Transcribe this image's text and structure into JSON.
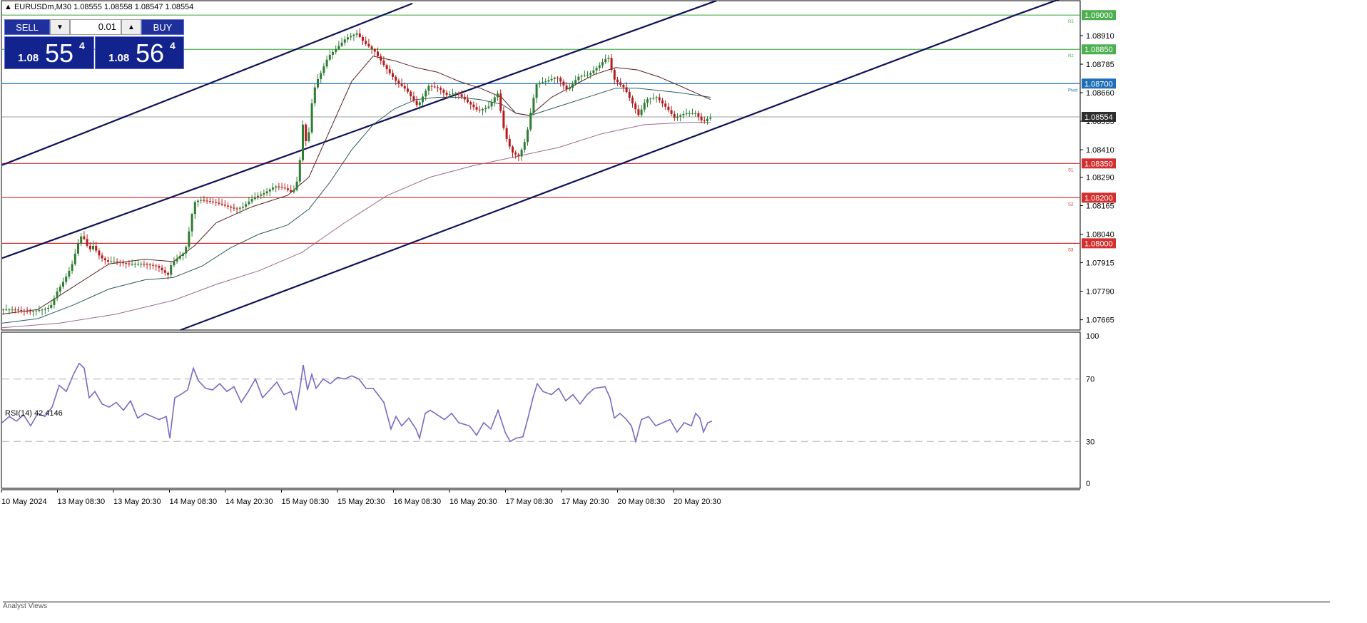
{
  "header": {
    "symbol_line": "EURUSDm,M30  1.08555 1.08558 1.08547 1.08554"
  },
  "trade_panel": {
    "sell_label": "SELL",
    "buy_label": "BUY",
    "lot": "0.01",
    "sell_price_small": "1.08",
    "sell_price_big": "55",
    "sell_price_sup": "4",
    "buy_price_small": "1.08",
    "buy_price_big": "56",
    "buy_price_sup": "4"
  },
  "indicator_label": "RSI(14) 42.4146",
  "bottom_tab": "Analyst Views",
  "chart_data": [
    {
      "type": "candlestick",
      "symbol": "EURUSDm",
      "timeframe": "M30",
      "ylim": [
        1.0762,
        1.0906
      ],
      "y_ticks": [
        "1.08910",
        "1.08785",
        "1.08660",
        "1.08535",
        "1.08410",
        "1.08290",
        "1.08165",
        "1.08040",
        "1.07915",
        "1.07790",
        "1.07665"
      ],
      "x_ticks": [
        "10 May 2024",
        "13 May 08:30",
        "13 May 20:30",
        "14 May 08:30",
        "14 May 20:30",
        "15 May 08:30",
        "15 May 20:30",
        "16 May 08:30",
        "16 May 20:30",
        "17 May 08:30",
        "17 May 20:30",
        "20 May 08:30",
        "20 May 20:30"
      ],
      "current_price": "1.08554",
      "levels": [
        {
          "price": 1.09,
          "label": "1.09000",
          "tag": "R3",
          "color": "#4caf50"
        },
        {
          "price": 1.0885,
          "label": "1.08850",
          "tag": "R2",
          "color": "#4caf50"
        },
        {
          "price": 1.087,
          "label": "1.08700",
          "tag": "Pivot",
          "color": "#1e6fb8"
        },
        {
          "price": 1.0835,
          "label": "1.08350",
          "tag": "S1",
          "color": "#d32f2f"
        },
        {
          "price": 1.082,
          "label": "1.08200",
          "tag": "S2",
          "color": "#d32f2f"
        },
        {
          "price": 1.08,
          "label": "1.08000",
          "tag": "S3",
          "color": "#d32f2f"
        }
      ],
      "close_path": [
        [
          0,
          1.0771
        ],
        [
          20,
          1.0771
        ],
        [
          40,
          1.077
        ],
        [
          60,
          1.0771
        ],
        [
          70,
          1.0772
        ],
        [
          80,
          1.0779
        ],
        [
          90,
          1.0784
        ],
        [
          100,
          1.079
        ],
        [
          110,
          1.0801
        ],
        [
          115,
          1.0804
        ],
        [
          120,
          1.08
        ],
        [
          125,
          1.0797
        ],
        [
          130,
          1.0799
        ],
        [
          140,
          1.0794
        ],
        [
          150,
          1.0792
        ],
        [
          160,
          1.0792
        ],
        [
          180,
          1.0791
        ],
        [
          200,
          1.0791
        ],
        [
          220,
          1.079
        ],
        [
          235,
          1.0786
        ],
        [
          240,
          1.0791
        ],
        [
          250,
          1.0794
        ],
        [
          258,
          1.0796
        ],
        [
          262,
          1.08
        ],
        [
          267,
          1.081
        ],
        [
          272,
          1.0818
        ],
        [
          280,
          1.0819
        ],
        [
          300,
          1.0818
        ],
        [
          320,
          1.0816
        ],
        [
          330,
          1.0815
        ],
        [
          340,
          1.0816
        ],
        [
          355,
          1.082
        ],
        [
          370,
          1.0822
        ],
        [
          385,
          1.0825
        ],
        [
          400,
          1.0824
        ],
        [
          410,
          1.0822
        ],
        [
          418,
          1.0829
        ],
        [
          425,
          1.0855
        ],
        [
          430,
          1.084
        ],
        [
          436,
          1.086
        ],
        [
          442,
          1.087
        ],
        [
          450,
          1.0875
        ],
        [
          460,
          1.0882
        ],
        [
          470,
          1.0885
        ],
        [
          485,
          1.089
        ],
        [
          500,
          1.0892
        ],
        [
          510,
          1.0888
        ],
        [
          525,
          1.0884
        ],
        [
          540,
          1.0877
        ],
        [
          555,
          1.0871
        ],
        [
          570,
          1.0867
        ],
        [
          585,
          1.086
        ],
        [
          600,
          1.0869
        ],
        [
          615,
          1.0868
        ],
        [
          625,
          1.0865
        ],
        [
          640,
          1.0866
        ],
        [
          655,
          1.0862
        ],
        [
          670,
          1.0858
        ],
        [
          685,
          1.086
        ],
        [
          697,
          1.0866
        ],
        [
          707,
          1.0848
        ],
        [
          717,
          1.084
        ],
        [
          727,
          1.0838
        ],
        [
          737,
          1.0846
        ],
        [
          745,
          1.086
        ],
        [
          752,
          1.087
        ],
        [
          765,
          1.0871
        ],
        [
          780,
          1.0873
        ],
        [
          795,
          1.0867
        ],
        [
          810,
          1.0873
        ],
        [
          825,
          1.0874
        ],
        [
          840,
          1.0878
        ],
        [
          852,
          1.0882
        ],
        [
          860,
          1.0872
        ],
        [
          875,
          1.0868
        ],
        [
          885,
          1.0862
        ],
        [
          895,
          1.0856
        ],
        [
          905,
          1.0863
        ],
        [
          920,
          1.0864
        ],
        [
          935,
          1.0859
        ],
        [
          945,
          1.0855
        ],
        [
          960,
          1.0857
        ],
        [
          975,
          1.0857
        ],
        [
          985,
          1.0853
        ],
        [
          993,
          1.0855
        ]
      ],
      "ma_fast": [
        [
          0,
          1.0769
        ],
        [
          50,
          1.0771
        ],
        [
          100,
          1.0781
        ],
        [
          150,
          1.0791
        ],
        [
          200,
          1.0793
        ],
        [
          240,
          1.0792
        ],
        [
          270,
          1.0799
        ],
        [
          300,
          1.0809
        ],
        [
          350,
          1.0816
        ],
        [
          400,
          1.0821
        ],
        [
          430,
          1.0829
        ],
        [
          460,
          1.085
        ],
        [
          490,
          1.0871
        ],
        [
          520,
          1.0882
        ],
        [
          550,
          1.088
        ],
        [
          580,
          1.0877
        ],
        [
          610,
          1.0875
        ],
        [
          640,
          1.0871
        ],
        [
          670,
          1.0868
        ],
        [
          700,
          1.0864
        ],
        [
          720,
          1.0857
        ],
        [
          740,
          1.0856
        ],
        [
          770,
          1.0864
        ],
        [
          800,
          1.0869
        ],
        [
          830,
          1.0874
        ],
        [
          860,
          1.0877
        ],
        [
          890,
          1.0876
        ],
        [
          920,
          1.0873
        ],
        [
          950,
          1.0869
        ],
        [
          993,
          1.0863
        ]
      ],
      "ma_mid": [
        [
          0,
          1.0765
        ],
        [
          50,
          1.0767
        ],
        [
          100,
          1.0773
        ],
        [
          150,
          1.078
        ],
        [
          200,
          1.0784
        ],
        [
          240,
          1.0785
        ],
        [
          280,
          1.079
        ],
        [
          320,
          1.0798
        ],
        [
          360,
          1.0804
        ],
        [
          400,
          1.0808
        ],
        [
          430,
          1.0815
        ],
        [
          460,
          1.0827
        ],
        [
          490,
          1.0841
        ],
        [
          520,
          1.0852
        ],
        [
          550,
          1.0859
        ],
        [
          580,
          1.0863
        ],
        [
          610,
          1.0864
        ],
        [
          640,
          1.0864
        ],
        [
          670,
          1.0863
        ],
        [
          700,
          1.0861
        ],
        [
          720,
          1.0857
        ],
        [
          740,
          1.0856
        ],
        [
          770,
          1.0859
        ],
        [
          800,
          1.0862
        ],
        [
          830,
          1.0865
        ],
        [
          860,
          1.0868
        ],
        [
          890,
          1.0868
        ],
        [
          920,
          1.0867
        ],
        [
          950,
          1.0866
        ],
        [
          993,
          1.0864
        ]
      ],
      "ma_slow": [
        [
          0,
          1.0763
        ],
        [
          80,
          1.0765
        ],
        [
          160,
          1.0769
        ],
        [
          240,
          1.0775
        ],
        [
          300,
          1.0782
        ],
        [
          360,
          1.0788
        ],
        [
          420,
          1.0796
        ],
        [
          480,
          1.0809
        ],
        [
          540,
          1.0821
        ],
        [
          600,
          1.0829
        ],
        [
          660,
          1.0834
        ],
        [
          720,
          1.0838
        ],
        [
          780,
          1.0842
        ],
        [
          840,
          1.0848
        ],
        [
          900,
          1.0852
        ],
        [
          960,
          1.0853
        ],
        [
          993,
          1.0853
        ]
      ]
    },
    {
      "type": "line",
      "title": "RSI(14) 42.4146",
      "ylim": [
        0,
        100
      ],
      "y_ticks": [
        "100",
        "70",
        "30",
        "0"
      ],
      "levels": [
        70,
        30
      ],
      "x_ticks": [
        "10 May 2024",
        "13 May 08:30",
        "13 May 20:30",
        "14 May 08:30",
        "14 May 20:30",
        "15 May 08:30",
        "15 May 20:30",
        "16 May 08:30",
        "16 May 20:30",
        "17 May 08:30",
        "17 May 20:30",
        "20 May 08:30",
        "20 May 20:30"
      ],
      "series": [
        {
          "values": [
            [
              0,
              42
            ],
            [
              10,
              46
            ],
            [
              20,
              43
            ],
            [
              30,
              47
            ],
            [
              40,
              40
            ],
            [
              50,
              48
            ],
            [
              60,
              46
            ],
            [
              70,
              52
            ],
            [
              80,
              66
            ],
            [
              90,
              62
            ],
            [
              100,
              73
            ],
            [
              108,
              80
            ],
            [
              115,
              77
            ],
            [
              122,
              58
            ],
            [
              130,
              62
            ],
            [
              140,
              54
            ],
            [
              150,
              52
            ],
            [
              160,
              55
            ],
            [
              170,
              50
            ],
            [
              180,
              56
            ],
            [
              190,
              45
            ],
            [
              200,
              48
            ],
            [
              210,
              46
            ],
            [
              220,
              44
            ],
            [
              230,
              46
            ],
            [
              235,
              32
            ],
            [
              242,
              58
            ],
            [
              250,
              60
            ],
            [
              260,
              63
            ],
            [
              268,
              77
            ],
            [
              275,
              69
            ],
            [
              285,
              64
            ],
            [
              295,
              63
            ],
            [
              305,
              67
            ],
            [
              315,
              62
            ],
            [
              325,
              65
            ],
            [
              335,
              55
            ],
            [
              345,
              62
            ],
            [
              355,
              70
            ],
            [
              365,
              58
            ],
            [
              375,
              63
            ],
            [
              385,
              68
            ],
            [
              395,
              60
            ],
            [
              405,
              62
            ],
            [
              412,
              50
            ],
            [
              418,
              66
            ],
            [
              422,
              79
            ],
            [
              428,
              63
            ],
            [
              434,
              73
            ],
            [
              440,
              64
            ],
            [
              450,
              70
            ],
            [
              460,
              67
            ],
            [
              470,
              71
            ],
            [
              480,
              70
            ],
            [
              490,
              72
            ],
            [
              500,
              70
            ],
            [
              510,
              64
            ],
            [
              520,
              64
            ],
            [
              535,
              55
            ],
            [
              545,
              38
            ],
            [
              552,
              46
            ],
            [
              560,
              40
            ],
            [
              570,
              45
            ],
            [
              580,
              38
            ],
            [
              585,
              32
            ],
            [
              593,
              48
            ],
            [
              600,
              50
            ],
            [
              610,
              47
            ],
            [
              620,
              44
            ],
            [
              630,
              48
            ],
            [
              640,
              42
            ],
            [
              655,
              40
            ],
            [
              665,
              34
            ],
            [
              675,
              42
            ],
            [
              685,
              38
            ],
            [
              695,
              50
            ],
            [
              705,
              36
            ],
            [
              712,
              30
            ],
            [
              720,
              32
            ],
            [
              730,
              33
            ],
            [
              737,
              45
            ],
            [
              744,
              58
            ],
            [
              750,
              67
            ],
            [
              758,
              62
            ],
            [
              770,
              60
            ],
            [
              780,
              64
            ],
            [
              790,
              56
            ],
            [
              800,
              60
            ],
            [
              810,
              54
            ],
            [
              820,
              60
            ],
            [
              830,
              64
            ],
            [
              845,
              65
            ],
            [
              852,
              58
            ],
            [
              858,
              45
            ],
            [
              866,
              48
            ],
            [
              875,
              44
            ],
            [
              882,
              40
            ],
            [
              888,
              30
            ],
            [
              896,
              44
            ],
            [
              906,
              46
            ],
            [
              916,
              40
            ],
            [
              926,
              42
            ],
            [
              936,
              44
            ],
            [
              946,
              36
            ],
            [
              956,
              42
            ],
            [
              966,
              40
            ],
            [
              972,
              48
            ],
            [
              978,
              45
            ],
            [
              983,
              36
            ],
            [
              989,
              42
            ],
            [
              995,
              43
            ]
          ]
        }
      ]
    }
  ]
}
